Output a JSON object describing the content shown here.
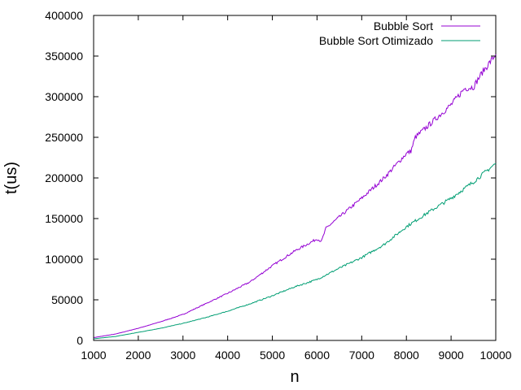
{
  "chart_data": {
    "type": "line",
    "xlabel": "n",
    "ylabel": "t(us)",
    "xlim": [
      1000,
      10000
    ],
    "ylim": [
      0,
      400000
    ],
    "xticks": [
      "1000",
      "2000",
      "3000",
      "4000",
      "5000",
      "6000",
      "7000",
      "8000",
      "9000",
      "10000"
    ],
    "yticks": [
      "0",
      "50000",
      "100000",
      "150000",
      "200000",
      "250000",
      "300000",
      "350000",
      "400000"
    ],
    "grid": false,
    "legend_position": "top-right",
    "series": [
      {
        "name": "Bubble Sort",
        "color": "#9400d3",
        "x": [
          1000,
          1500,
          2000,
          2500,
          3000,
          3500,
          4000,
          4500,
          5000,
          5500,
          6000,
          6100,
          6200,
          6500,
          7000,
          7500,
          8000,
          8100,
          8200,
          8300,
          8500,
          9000,
          9300,
          9500,
          9700,
          10000
        ],
        "y": [
          3500,
          8000,
          15000,
          23000,
          32000,
          45000,
          58000,
          72000,
          92000,
          110000,
          125000,
          122000,
          138000,
          152000,
          175000,
          200000,
          230000,
          233000,
          250000,
          255000,
          265000,
          290000,
          310000,
          312000,
          330000,
          352000
        ]
      },
      {
        "name": "Bubble Sort Otimizado",
        "color": "#009e73",
        "x": [
          1000,
          1500,
          2000,
          2500,
          3000,
          3500,
          4000,
          4500,
          5000,
          5500,
          6000,
          6500,
          7000,
          7500,
          8000,
          8500,
          9000,
          9500,
          10000
        ],
        "y": [
          2000,
          5000,
          10000,
          15000,
          21000,
          28000,
          36000,
          45000,
          55000,
          66000,
          75000,
          89000,
          102000,
          118000,
          140000,
          158000,
          175000,
          195000,
          218000
        ]
      }
    ]
  }
}
